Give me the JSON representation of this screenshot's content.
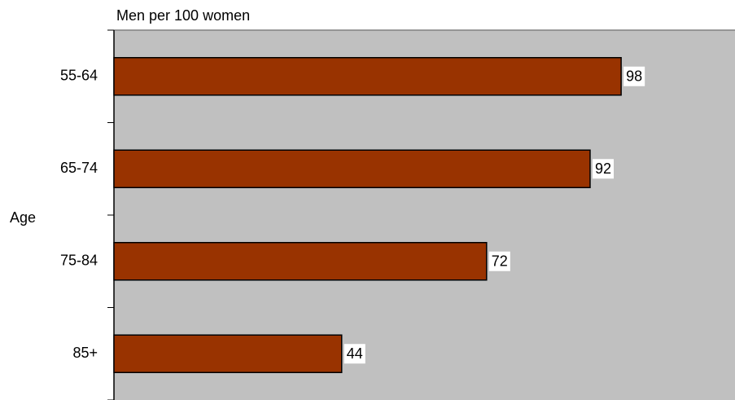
{
  "chart_data": {
    "type": "barh",
    "title": "Men per 100 women",
    "y_label": "Age",
    "categories": [
      "55-64",
      "65-74",
      "75-84",
      "85+"
    ],
    "values": [
      98,
      92,
      72,
      44
    ],
    "color": "#993300",
    "xlim": [
      0,
      120
    ]
  }
}
